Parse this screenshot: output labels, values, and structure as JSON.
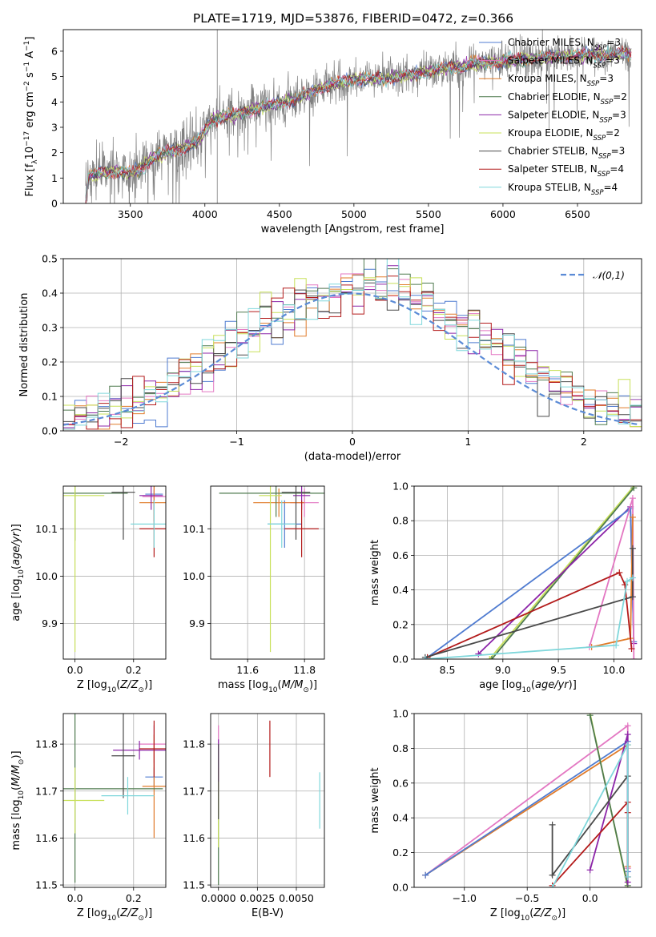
{
  "figure": {
    "title": "PLATE=1719, MJD=53876, FIBERID=0472, z=0.366"
  },
  "colors": {
    "Chabrier MILES": "#4f7bd0",
    "Salpeter MILES": "#e377c2",
    "Kroupa MILES": "#e07b2a",
    "Chabrier ELODIE": "#4f7a4f",
    "Salpeter ELODIE": "#8c24a8",
    "Kroupa ELODIE": "#c8e05a",
    "Chabrier STELIB": "#4a4a4a",
    "Salpeter STELIB": "#b31b1b",
    "Kroupa STELIB": "#7fd7db",
    "observed": "#808080",
    "normal_curve": "#5b8bd6",
    "grid": "#b0b0b0"
  },
  "chart_data": [
    {
      "id": "spectrum",
      "type": "line",
      "title": "PLATE=1719, MJD=53876, FIBERID=0472, z=0.366",
      "xlabel": "wavelength [Angstrom, rest frame]",
      "ylabel": "Flux [f_λ 10^-17 erg cm^-2 s^-1 A^-1]",
      "xlim": [
        3050,
        6930
      ],
      "ylim": [
        0,
        6.85
      ],
      "xticks": [
        3500,
        4000,
        4500,
        5000,
        5500,
        6000,
        6500
      ],
      "yticks": [
        0,
        1,
        2,
        3,
        4,
        5,
        6
      ],
      "grid": false,
      "legend_position": "right",
      "legend": [
        {
          "model": "Chabrier MILES",
          "label": "Chabrier MILES, N",
          "sub": "SSP",
          "suffix": "=3"
        },
        {
          "model": "Salpeter MILES",
          "label": "Salpeter MILES, N",
          "sub": "SSP",
          "suffix": "=3"
        },
        {
          "model": "Kroupa MILES",
          "label": "Kroupa MILES, N",
          "sub": "SSP",
          "suffix": "=3"
        },
        {
          "model": "Chabrier ELODIE",
          "label": "Chabrier ELODIE, N",
          "sub": "SSP",
          "suffix": "=2"
        },
        {
          "model": "Salpeter ELODIE",
          "label": "Salpeter ELODIE, N",
          "sub": "SSP",
          "suffix": "=3"
        },
        {
          "model": "Kroupa ELODIE",
          "label": "Kroupa ELODIE, N",
          "sub": "SSP",
          "suffix": "=2"
        },
        {
          "model": "Chabrier STELIB",
          "label": "Chabrier STELIB, N",
          "sub": "SSP",
          "suffix": "=3"
        },
        {
          "model": "Salpeter STELIB",
          "label": "Salpeter STELIB, N",
          "sub": "SSP",
          "suffix": "=4"
        },
        {
          "model": "Kroupa STELIB",
          "label": "Kroupa STELIB, N",
          "sub": "SSP",
          "suffix": "=4"
        }
      ],
      "continuum_points": [
        [
          3200,
          0.1
        ],
        [
          3220,
          1.1
        ],
        [
          3300,
          1.2
        ],
        [
          3400,
          1.25
        ],
        [
          3500,
          1.2
        ],
        [
          3560,
          1.3
        ],
        [
          3650,
          1.8
        ],
        [
          3750,
          2.0
        ],
        [
          3850,
          2.2
        ],
        [
          3950,
          2.4
        ],
        [
          4050,
          3.3
        ],
        [
          4200,
          3.5
        ],
        [
          4400,
          3.8
        ],
        [
          4600,
          4.1
        ],
        [
          4800,
          4.6
        ],
        [
          5000,
          4.9
        ],
        [
          5200,
          4.9
        ],
        [
          5400,
          5.1
        ],
        [
          5600,
          5.3
        ],
        [
          5800,
          5.5
        ],
        [
          6000,
          5.6
        ],
        [
          6200,
          5.7
        ],
        [
          6400,
          5.8
        ],
        [
          6600,
          5.85
        ],
        [
          6860,
          5.9
        ]
      ]
    },
    {
      "id": "residual-histogram",
      "type": "line",
      "xlabel": "(data-model)/error",
      "ylabel": "Normed distribution",
      "xlim": [
        -2.5,
        2.5
      ],
      "ylim": [
        0,
        0.5
      ],
      "xticks": [
        -2,
        -1,
        0,
        1,
        2
      ],
      "yticks": [
        0.0,
        0.1,
        0.2,
        0.3,
        0.4,
        0.5
      ],
      "grid": true,
      "legend": [
        "𝒩(0,1)"
      ],
      "legend_position": "top-right",
      "normal_curve": {
        "mean": 0,
        "sigma": 1
      },
      "bin_width": 0.1,
      "histogram_envelope": {
        "peak": 0.42,
        "center": 0.1,
        "sigma": 1.1
      }
    },
    {
      "id": "age-vs-Z",
      "type": "scatter",
      "xlabel": "Z [log10(Z/Z⊙)]",
      "ylabel": "age [log10(age/yr)]",
      "xlim": [
        -0.04,
        0.31
      ],
      "ylim": [
        9.825,
        10.19
      ],
      "xticks": [
        0.0,
        0.2
      ],
      "yticks": [
        9.9,
        10.0,
        10.1
      ],
      "grid": true,
      "points": [
        {
          "model": "Chabrier MILES",
          "x": 0.27,
          "y": 10.173,
          "xerr": 0.03,
          "yerr": 0.01
        },
        {
          "model": "Salpeter MILES",
          "x": 0.27,
          "y": 10.168,
          "xerr": 0.04,
          "yerr": 0.03
        },
        {
          "model": "Kroupa MILES",
          "x": 0.27,
          "y": 10.155,
          "xerr": 0.05,
          "yerr": 0.04
        },
        {
          "model": "Chabrier ELODIE",
          "x": 0.0,
          "y": 10.175,
          "xerr": 0.18,
          "yerr": 0.1
        },
        {
          "model": "Salpeter ELODIE",
          "x": 0.26,
          "y": 10.17,
          "xerr": 0.04,
          "yerr": 0.03
        },
        {
          "model": "Kroupa ELODIE",
          "x": 0.0,
          "y": 10.17,
          "xerr": 0.1,
          "yerr": 0.33
        },
        {
          "model": "Chabrier STELIB",
          "x": 0.165,
          "y": 10.177,
          "xerr": 0.04,
          "yerr": 0.1
        },
        {
          "model": "Salpeter STELIB",
          "x": 0.27,
          "y": 10.1,
          "xerr": 0.05,
          "yerr": 0.06
        },
        {
          "model": "Kroupa STELIB",
          "x": 0.27,
          "y": 10.11,
          "xerr": 0.08,
          "yerr": 0.05
        }
      ]
    },
    {
      "id": "age-vs-mass",
      "type": "scatter",
      "xlabel": "mass [log10(M/M⊙)]",
      "ylabel": "",
      "xlim": [
        11.47,
        11.87
      ],
      "ylim": [
        9.825,
        10.19
      ],
      "xticks": [
        11.6,
        11.8
      ],
      "yticks": [
        9.9,
        10.0,
        10.1
      ],
      "grid": true,
      "points": [
        {
          "model": "Chabrier MILES",
          "x": 11.73,
          "y": 10.11,
          "xerr": 0.06,
          "yerr": 0.05
        },
        {
          "model": "Salpeter MILES",
          "x": 11.8,
          "y": 10.155,
          "xerr": 0.05,
          "yerr": 0.03
        },
        {
          "model": "Kroupa MILES",
          "x": 11.71,
          "y": 10.155,
          "xerr": 0.09,
          "yerr": 0.03
        },
        {
          "model": "Chabrier ELODIE",
          "x": 11.7,
          "y": 10.175,
          "xerr": 0.2,
          "yerr": 0.05
        },
        {
          "model": "Salpeter ELODIE",
          "x": 11.79,
          "y": 10.17,
          "xerr": 0.03,
          "yerr": 0.03
        },
        {
          "model": "Kroupa ELODIE",
          "x": 11.68,
          "y": 10.17,
          "xerr": 0.04,
          "yerr": 0.33
        },
        {
          "model": "Chabrier STELIB",
          "x": 11.77,
          "y": 10.177,
          "xerr": 0.05,
          "yerr": 0.1
        },
        {
          "model": "Salpeter STELIB",
          "x": 11.79,
          "y": 10.1,
          "xerr": 0.06,
          "yerr": 0.06
        },
        {
          "model": "Kroupa STELIB",
          "x": 11.72,
          "y": 10.11,
          "xerr": 0.05,
          "yerr": 0.05
        }
      ]
    },
    {
      "id": "mass-weight-vs-age",
      "type": "line",
      "xlabel": "age [log10(age/yr)]",
      "ylabel": "mass weight",
      "xlim": [
        8.2,
        10.25
      ],
      "ylim": [
        0,
        1
      ],
      "xticks": [
        8.5,
        9.0,
        9.5,
        10.0
      ],
      "yticks": [
        0.0,
        0.2,
        0.4,
        0.6,
        0.8,
        1.0
      ],
      "grid": true,
      "series": [
        {
          "model": "Kroupa ELODIE",
          "points": [
            [
              8.88,
              0.0
            ],
            [
              10.18,
              1.0
            ]
          ]
        },
        {
          "model": "Chabrier ELODIE",
          "points": [
            [
              8.9,
              0.0
            ],
            [
              10.18,
              0.99
            ]
          ]
        },
        {
          "model": "Salpeter ELODIE",
          "points": [
            [
              8.78,
              0.03
            ],
            [
              10.15,
              0.88
            ],
            [
              10.18,
              0.09
            ]
          ]
        },
        {
          "model": "Chabrier MILES",
          "points": [
            [
              8.3,
              0.0
            ],
            [
              10.15,
              0.87
            ],
            [
              10.18,
              0.1
            ]
          ]
        },
        {
          "model": "Salpeter MILES",
          "points": [
            [
              9.78,
              0.07
            ],
            [
              10.17,
              0.93
            ],
            [
              10.18,
              0.0
            ]
          ]
        },
        {
          "model": "Kroupa MILES",
          "points": [
            [
              9.8,
              0.07
            ],
            [
              10.15,
              0.12
            ],
            [
              10.17,
              0.82
            ]
          ]
        },
        {
          "model": "Salpeter STELIB",
          "points": [
            [
              8.32,
              0.01
            ],
            [
              10.05,
              0.5
            ],
            [
              10.1,
              0.43
            ],
            [
              10.16,
              0.06
            ]
          ]
        },
        {
          "model": "Chabrier STELIB",
          "points": [
            [
              8.3,
              0.01
            ],
            [
              10.17,
              0.36
            ],
            [
              10.17,
              0.64
            ]
          ]
        },
        {
          "model": "Kroupa STELIB",
          "points": [
            [
              8.3,
              0.0
            ],
            [
              10.02,
              0.08
            ],
            [
              10.12,
              0.45
            ],
            [
              10.17,
              0.47
            ]
          ]
        }
      ]
    },
    {
      "id": "mass-vs-Z",
      "type": "scatter",
      "xlabel": "Z [log10(Z/Z⊙)]",
      "ylabel": "mass [log10(M/M⊙)]",
      "xlim": [
        -0.04,
        0.31
      ],
      "ylim": [
        11.495,
        11.865
      ],
      "xticks": [
        0.0,
        0.2
      ],
      "yticks": [
        11.5,
        11.6,
        11.7,
        11.8
      ],
      "grid": true,
      "points": [
        {
          "model": "Chabrier MILES",
          "x": 0.27,
          "y": 11.73,
          "xerr": 0.03,
          "yerr": 0.02
        },
        {
          "model": "Salpeter MILES",
          "x": 0.27,
          "y": 11.8,
          "xerr": 0.05,
          "yerr": 0.04
        },
        {
          "model": "Kroupa MILES",
          "x": 0.27,
          "y": 11.71,
          "xerr": 0.04,
          "yerr": 0.11
        },
        {
          "model": "Chabrier ELODIE",
          "x": 0.0,
          "y": 11.705,
          "xerr": 0.3,
          "yerr": 0.2
        },
        {
          "model": "Salpeter ELODIE",
          "x": 0.22,
          "y": 11.787,
          "xerr": 0.09,
          "yerr": 0.02
        },
        {
          "model": "Kroupa ELODIE",
          "x": 0.0,
          "y": 11.68,
          "xerr": 0.1,
          "yerr": 0.07
        },
        {
          "model": "Chabrier STELIB",
          "x": 0.165,
          "y": 11.775,
          "xerr": 0.04,
          "yerr": 0.09
        },
        {
          "model": "Salpeter STELIB",
          "x": 0.27,
          "y": 11.79,
          "xerr": 0.05,
          "yerr": 0.06
        },
        {
          "model": "Kroupa STELIB",
          "x": 0.18,
          "y": 11.69,
          "xerr": 0.09,
          "yerr": 0.04
        }
      ]
    },
    {
      "id": "mass-vs-ebv",
      "type": "scatter",
      "xlabel": "E(B-V)",
      "ylabel": "",
      "xlim": [
        -0.0005,
        0.0068
      ],
      "ylim": [
        11.495,
        11.865
      ],
      "xticks": [
        0.0,
        0.0025,
        0.005
      ],
      "xtick_labels": [
        "0.0000",
        "0.0025",
        "0.0050"
      ],
      "yticks": [
        11.5,
        11.6,
        11.7,
        11.8
      ],
      "grid": true,
      "points": [
        {
          "model": "Chabrier MILES",
          "x": 0.0,
          "y": 11.73,
          "xerr": 0,
          "yerr": 0.03
        },
        {
          "model": "Salpeter MILES",
          "x": 0.0,
          "y": 11.78,
          "xerr": 0,
          "yerr": 0.06
        },
        {
          "model": "Kroupa MILES",
          "x": 0.0,
          "y": 11.7,
          "xerr": 0,
          "yerr": 0.05
        },
        {
          "model": "Chabrier ELODIE",
          "x": 0.0,
          "y": 11.6,
          "xerr": 0,
          "yerr": 0.1
        },
        {
          "model": "Salpeter ELODIE",
          "x": 0.0,
          "y": 11.75,
          "xerr": 0,
          "yerr": 0.06
        },
        {
          "model": "Kroupa ELODIE",
          "x": 0.0,
          "y": 11.65,
          "xerr": 0,
          "yerr": 0.07
        },
        {
          "model": "Chabrier STELIB",
          "x": 0.0,
          "y": 11.72,
          "xerr": 0,
          "yerr": 0.08
        },
        {
          "model": "Salpeter STELIB",
          "x": 0.0033,
          "y": 11.79,
          "xerr": 0,
          "yerr": 0.06
        },
        {
          "model": "Kroupa STELIB",
          "x": 0.0065,
          "y": 11.68,
          "xerr": 0,
          "yerr": 0.06
        }
      ]
    },
    {
      "id": "mass-weight-vs-Z",
      "type": "line",
      "xlabel": "Z [log10(Z/Z⊙)]",
      "ylabel": "mass weight",
      "xlim": [
        -1.4,
        0.41
      ],
      "ylim": [
        0,
        1
      ],
      "xticks": [
        -1.0,
        -0.5,
        0.0
      ],
      "yticks": [
        0.0,
        0.2,
        0.4,
        0.6,
        0.8,
        1.0
      ],
      "grid": true,
      "series": [
        {
          "model": "Salpeter MILES",
          "points": [
            [
              -1.31,
              0.07
            ],
            [
              0.3,
              0.93
            ],
            [
              0.3,
              0.11
            ],
            [
              0.3,
              0.0
            ]
          ]
        },
        {
          "model": "Kroupa MILES",
          "points": [
            [
              -1.31,
              0.07
            ],
            [
              0.3,
              0.82
            ],
            [
              0.3,
              0.12
            ]
          ]
        },
        {
          "model": "Chabrier MILES",
          "points": [
            [
              -1.31,
              0.07
            ],
            [
              0.3,
              0.84
            ],
            [
              0.3,
              0.09
            ]
          ]
        },
        {
          "model": "Kroupa ELODIE",
          "points": [
            [
              0.0,
              1.0
            ],
            [
              0.3,
              0.0
            ]
          ]
        },
        {
          "model": "Chabrier ELODIE",
          "points": [
            [
              0.0,
              0.99
            ],
            [
              0.3,
              0.01
            ]
          ]
        },
        {
          "model": "Salpeter ELODIE",
          "points": [
            [
              0.0,
              0.1
            ],
            [
              0.3,
              0.88
            ],
            [
              0.3,
              0.03
            ]
          ]
        },
        {
          "model": "Chabrier STELIB",
          "points": [
            [
              -0.3,
              0.36
            ],
            [
              -0.3,
              0.07
            ],
            [
              0.3,
              0.64
            ]
          ]
        },
        {
          "model": "Salpeter STELIB",
          "points": [
            [
              -0.3,
              0.01
            ],
            [
              0.3,
              0.49
            ],
            [
              0.3,
              0.43
            ],
            [
              0.3,
              0.06
            ]
          ]
        },
        {
          "model": "Kroupa STELIB",
          "points": [
            [
              -0.3,
              0.0
            ],
            [
              0.3,
              0.82
            ],
            [
              0.3,
              0.06
            ]
          ]
        }
      ]
    }
  ]
}
